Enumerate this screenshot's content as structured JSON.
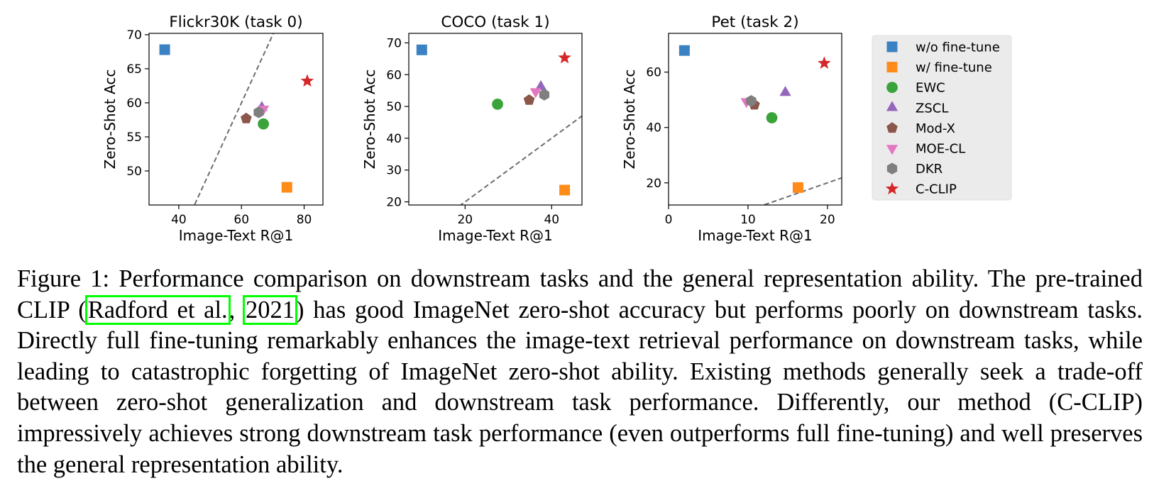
{
  "chart_data": [
    {
      "type": "scatter",
      "title": "Flickr30K (task 0)",
      "xlabel": "Image-Text R@1",
      "ylabel": "Zero-Shot Acc",
      "xlim": [
        30.5,
        86
      ],
      "ylim": [
        45,
        70.2
      ],
      "xticks": [
        40,
        60,
        80
      ],
      "yticks": [
        50,
        55,
        60,
        65,
        70
      ],
      "diagonal": true,
      "points": [
        {
          "method": "w/o fine-tune",
          "x": 35.5,
          "y": 67.8
        },
        {
          "method": "w/ fine-tune",
          "x": 74.5,
          "y": 47.6
        },
        {
          "method": "EWC",
          "x": 67.0,
          "y": 56.9
        },
        {
          "method": "ZSCL",
          "x": 66.5,
          "y": 59.3
        },
        {
          "method": "Mod-X",
          "x": 61.5,
          "y": 57.7
        },
        {
          "method": "MOE-CL",
          "x": 67.0,
          "y": 59.1
        },
        {
          "method": "DKR",
          "x": 65.5,
          "y": 58.6
        },
        {
          "method": "C-CLIP",
          "x": 81.0,
          "y": 63.2
        }
      ]
    },
    {
      "type": "scatter",
      "title": "COCO (task 1)",
      "xlabel": "Image-Text R@1",
      "ylabel": "Zero-Shot Acc",
      "xlim": [
        7,
        47
      ],
      "ylim": [
        19,
        73
      ],
      "xticks": [
        20,
        40
      ],
      "yticks": [
        20,
        30,
        40,
        50,
        60,
        70
      ],
      "diagonal": true,
      "points": [
        {
          "method": "w/o fine-tune",
          "x": 10.0,
          "y": 67.8
        },
        {
          "method": "w/ fine-tune",
          "x": 43.0,
          "y": 23.7
        },
        {
          "method": "EWC",
          "x": 27.5,
          "y": 50.7
        },
        {
          "method": "ZSCL",
          "x": 37.5,
          "y": 56.2
        },
        {
          "method": "Mod-X",
          "x": 34.8,
          "y": 52.0
        },
        {
          "method": "MOE-CL",
          "x": 36.3,
          "y": 54.7
        },
        {
          "method": "DKR",
          "x": 38.3,
          "y": 53.7
        },
        {
          "method": "C-CLIP",
          "x": 43.0,
          "y": 65.3
        }
      ]
    },
    {
      "type": "scatter",
      "title": "Pet (task 2)",
      "xlabel": "Image-Text R@1",
      "ylabel": "Zero-Shot Acc",
      "xlim": [
        0,
        21.8
      ],
      "ylim": [
        12,
        74
      ],
      "xticks": [
        0,
        10,
        20
      ],
      "yticks": [
        20,
        40,
        60
      ],
      "diagonal": true,
      "points": [
        {
          "method": "w/o fine-tune",
          "x": 2.0,
          "y": 67.8
        },
        {
          "method": "w/ fine-tune",
          "x": 16.3,
          "y": 18.3
        },
        {
          "method": "EWC",
          "x": 13.0,
          "y": 43.5
        },
        {
          "method": "ZSCL",
          "x": 14.7,
          "y": 52.6
        },
        {
          "method": "Mod-X",
          "x": 10.8,
          "y": 48.2
        },
        {
          "method": "MOE-CL",
          "x": 9.8,
          "y": 49.4
        },
        {
          "method": "DKR",
          "x": 10.4,
          "y": 49.6
        },
        {
          "method": "C-CLIP",
          "x": 19.6,
          "y": 63.2
        }
      ]
    }
  ],
  "legend": [
    {
      "label": "w/o fine-tune",
      "marker": "square",
      "color": "#3b82c4"
    },
    {
      "label": "w/ fine-tune",
      "marker": "square",
      "color": "#ff8c1a"
    },
    {
      "label": "EWC",
      "marker": "circle",
      "color": "#3aa33a"
    },
    {
      "label": "ZSCL",
      "marker": "triangle-up",
      "color": "#9467bd"
    },
    {
      "label": "Mod-X",
      "marker": "pentagon",
      "color": "#8c564b"
    },
    {
      "label": "MOE-CL",
      "marker": "triangle-down",
      "color": "#e377c2"
    },
    {
      "label": "DKR",
      "marker": "hexagon",
      "color": "#7f7f7f"
    },
    {
      "label": "C-CLIP",
      "marker": "star",
      "color": "#d62728"
    }
  ],
  "caption": {
    "part1": "Figure 1: Performance comparison on downstream tasks and the general representation ability. The pre-trained CLIP (",
    "cite_author": "Radford et al.",
    "sep": ", ",
    "cite_year": "2021",
    "part2": ") has good ImageNet zero-shot accuracy but performs poorly on downstream tasks. Directly full fine-tuning remarkably enhances the image-text retrieval performance on downstream tasks, while leading to catastrophic forgetting of ImageNet zero-shot ability. Existing methods generally seek a trade-off between zero-shot generalization and downstream task performance. Differently, our method (C-CLIP) impressively achieves strong downstream task performance (even outperforms full fine-tuning) and well preserves the general representation ability."
  }
}
